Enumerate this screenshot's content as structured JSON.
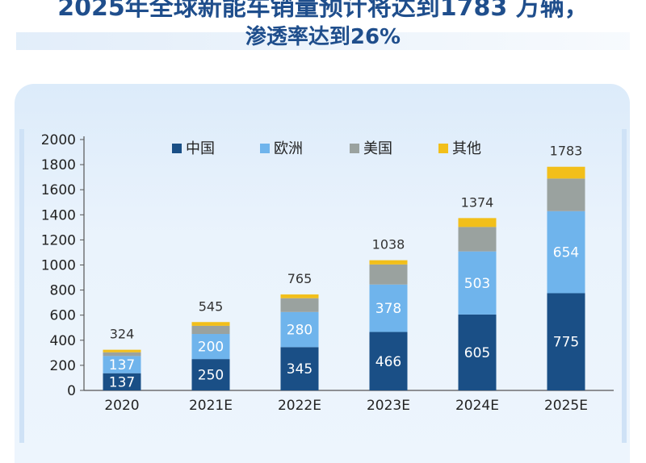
{
  "title": {
    "line1": "2025年全球新能车销量预计将达到1783 万辆，",
    "line2": "渗透率达到26%"
  },
  "colors": {
    "china": "#1a4f86",
    "europe": "#6fb4ec",
    "usa": "#9aa29f",
    "other": "#f2bf1a"
  },
  "chart_data": {
    "type": "bar",
    "stacked": true,
    "categories": [
      "2020",
      "2021E",
      "2022E",
      "2023E",
      "2024E",
      "2025E"
    ],
    "series": [
      {
        "name": "中国",
        "values": [
          137,
          250,
          345,
          466,
          605,
          775
        ]
      },
      {
        "name": "欧洲",
        "values": [
          137,
          200,
          280,
          378,
          503,
          654
        ]
      },
      {
        "name": "美国",
        "values": [
          30,
          65,
          110,
          160,
          195,
          260
        ]
      },
      {
        "name": "其他",
        "values": [
          20,
          30,
          30,
          34,
          71,
          94
        ]
      }
    ],
    "segment_labels": {
      "中国": [
        "137",
        "250",
        "345",
        "466",
        "605",
        "775"
      ],
      "欧洲": [
        "137",
        "200",
        "280",
        "378",
        "503",
        "654"
      ]
    },
    "totals": [
      "324",
      "545",
      "765",
      "1038",
      "1374",
      "1783"
    ],
    "yticks": [
      "0",
      "200",
      "400",
      "600",
      "800",
      "1000",
      "1200",
      "1400",
      "1600",
      "1800",
      "2000"
    ],
    "ylim": [
      0,
      2000
    ],
    "legend_position": "top",
    "grid": false
  }
}
